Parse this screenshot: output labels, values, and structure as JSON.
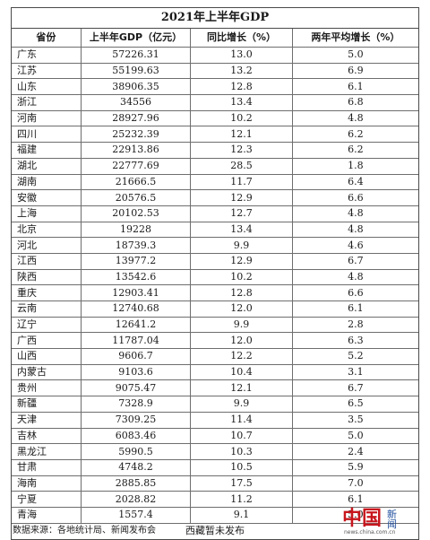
{
  "title": "2021年上半年GDP",
  "headers": {
    "province": "省份",
    "gdp": "上半年GDP（亿元）",
    "yoy": "同比增长（%）",
    "avg": "两年平均增长（%）"
  },
  "rows": [
    {
      "province": "广东",
      "gdp": "57226.31",
      "yoy": "13.0",
      "avg": "5.0"
    },
    {
      "province": "江苏",
      "gdp": "55199.63",
      "yoy": "13.2",
      "avg": "6.9"
    },
    {
      "province": "山东",
      "gdp": "38906.35",
      "yoy": "12.8",
      "avg": "6.1"
    },
    {
      "province": "浙江",
      "gdp": "34556",
      "yoy": "13.4",
      "avg": "6.8"
    },
    {
      "province": "河南",
      "gdp": "28927.96",
      "yoy": "10.2",
      "avg": "4.8"
    },
    {
      "province": "四川",
      "gdp": "25232.39",
      "yoy": "12.1",
      "avg": "6.2"
    },
    {
      "province": "福建",
      "gdp": "22913.86",
      "yoy": "12.3",
      "avg": "6.2"
    },
    {
      "province": "湖北",
      "gdp": "22777.69",
      "yoy": "28.5",
      "avg": "1.8"
    },
    {
      "province": "湖南",
      "gdp": "21666.5",
      "yoy": "11.7",
      "avg": "6.4"
    },
    {
      "province": "安徽",
      "gdp": "20576.5",
      "yoy": "12.9",
      "avg": "6.6"
    },
    {
      "province": "上海",
      "gdp": "20102.53",
      "yoy": "12.7",
      "avg": "4.8"
    },
    {
      "province": "北京",
      "gdp": "19228",
      "yoy": "13.4",
      "avg": "4.8"
    },
    {
      "province": "河北",
      "gdp": "18739.3",
      "yoy": "9.9",
      "avg": "4.6"
    },
    {
      "province": "江西",
      "gdp": "13977.2",
      "yoy": "12.9",
      "avg": "6.7"
    },
    {
      "province": "陕西",
      "gdp": "13542.6",
      "yoy": "10.2",
      "avg": "4.8"
    },
    {
      "province": "重庆",
      "gdp": "12903.41",
      "yoy": "12.8",
      "avg": "6.6"
    },
    {
      "province": "云南",
      "gdp": "12740.68",
      "yoy": "12.0",
      "avg": "6.1"
    },
    {
      "province": "辽宁",
      "gdp": "12641.2",
      "yoy": "9.9",
      "avg": "2.8"
    },
    {
      "province": "广西",
      "gdp": "11787.04",
      "yoy": "12.0",
      "avg": "6.3"
    },
    {
      "province": "山西",
      "gdp": "9606.7",
      "yoy": "12.2",
      "avg": "5.2"
    },
    {
      "province": "内蒙古",
      "gdp": "9103.6",
      "yoy": "10.4",
      "avg": "3.1"
    },
    {
      "province": "贵州",
      "gdp": "9075.47",
      "yoy": "12.1",
      "avg": "6.7"
    },
    {
      "province": "新疆",
      "gdp": "7328.9",
      "yoy": "9.9",
      "avg": "6.5"
    },
    {
      "province": "天津",
      "gdp": "7309.25",
      "yoy": "11.4",
      "avg": "3.5"
    },
    {
      "province": "吉林",
      "gdp": "6083.46",
      "yoy": "10.7",
      "avg": "5.0"
    },
    {
      "province": "黑龙江",
      "gdp": "5990.5",
      "yoy": "10.3",
      "avg": "2.4"
    },
    {
      "province": "甘肃",
      "gdp": "4748.2",
      "yoy": "10.5",
      "avg": "5.9"
    },
    {
      "province": "海南",
      "gdp": "2885.85",
      "yoy": "17.5",
      "avg": "7.0"
    },
    {
      "province": "宁夏",
      "gdp": "2028.82",
      "yoy": "11.2",
      "avg": "6.1"
    },
    {
      "province": "青海",
      "gdp": "1557.4",
      "yoy": "9.1",
      "avg": "5.0"
    }
  ],
  "note": "西藏暂未发布",
  "source": "数据来源：各地统计局、新闻发布会",
  "watermark": {
    "logo": "中国",
    "news": "新闻",
    "url": "news.china.com.cn"
  },
  "colors": {
    "logo_red": "#c8161d",
    "logo_blue": "#1f4e9c"
  }
}
